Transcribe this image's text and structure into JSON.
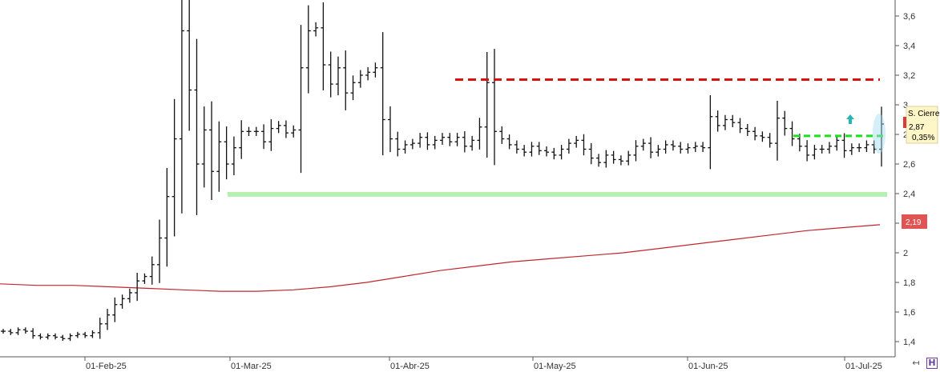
{
  "chart_data": {
    "type": "ohlc",
    "title": "",
    "xlabel": "",
    "ylabel": "",
    "ylim": [
      1.3,
      3.7
    ],
    "grid": false,
    "y_ticks": [
      "3,6",
      "3,4",
      "3,2",
      "3",
      "2,8",
      "2,6",
      "2,4",
      "2,2",
      "2",
      "1,8",
      "1,6",
      "1,4"
    ],
    "y_tick_values": [
      3.6,
      3.4,
      3.2,
      3.0,
      2.8,
      2.6,
      2.4,
      2.2,
      2.0,
      1.8,
      1.6,
      1.4
    ],
    "x_ticks": [
      "01-Feb-25",
      "01-Mar-25",
      "01-Abr-25",
      "01-May-25",
      "01-Jun-25",
      "01-Jul-25"
    ],
    "series": [
      {
        "values": [
          1.47,
          1.46,
          1.48,
          1.47,
          1.44,
          1.43,
          1.44,
          1.43,
          1.42,
          1.44,
          1.45,
          1.44,
          1.46,
          1.52,
          1.58,
          1.65,
          1.69,
          1.73,
          1.81,
          1.84,
          1.92,
          2.1,
          2.38,
          2.77,
          3.5,
          3.1,
          2.6,
          2.83,
          2.55,
          2.75,
          2.6,
          2.71,
          2.82,
          2.82,
          2.82,
          2.75,
          2.84,
          2.86,
          2.81,
          2.83,
          3.25,
          3.5,
          3.52,
          3.27,
          3.14,
          3.25,
          3.08,
          3.15,
          3.2,
          3.22,
          3.25,
          2.9,
          2.77,
          2.7,
          2.73,
          2.74,
          2.78,
          2.73,
          2.76,
          2.78,
          2.75,
          2.78,
          2.72,
          2.76,
          2.85,
          3.15,
          2.82,
          2.77,
          2.73,
          2.7,
          2.68,
          2.72,
          2.69,
          2.68,
          2.66,
          2.7,
          2.74,
          2.76,
          2.7,
          2.64,
          2.61,
          2.66,
          2.63,
          2.62,
          2.66,
          2.72,
          2.74,
          2.68,
          2.7,
          2.73,
          2.72,
          2.7,
          2.71,
          2.72,
          2.71,
          2.92,
          2.86,
          2.9,
          2.88,
          2.84,
          2.82,
          2.79,
          2.78,
          2.74,
          2.91,
          2.84,
          2.77,
          2.72,
          2.66,
          2.7,
          2.7,
          2.72,
          2.76,
          2.69,
          2.71,
          2.71,
          2.73,
          2.7,
          2.87
        ]
      },
      {
        "values": [
          1.79,
          1.78,
          1.78,
          1.77,
          1.76,
          1.75,
          1.74,
          1.74,
          1.75,
          1.77,
          1.8,
          1.84,
          1.88,
          1.91,
          1.94,
          1.96,
          1.98,
          2.0,
          2.03,
          2.06,
          2.09,
          2.12,
          2.15,
          2.17,
          2.19
        ]
      }
    ],
    "annotations": {
      "resistance": 3.17,
      "support": 2.395,
      "recent_level": 2.79,
      "close_label": "S. Cierre:",
      "close_value": "2,87",
      "close_change": "0,35%",
      "ma_value": "2,19"
    }
  },
  "colors": {
    "bars": "#111111",
    "ma": "#c0272d",
    "resistance": "#dd1111",
    "support": "#b5f0b0",
    "recent_level": "#1fdd1f",
    "arrow": "#2ab5b5",
    "badge_bg": "#fff6c8",
    "ma_badge_bg": "#e05454"
  },
  "toolbar": {
    "back_icon": "↤",
    "save_icon": "H"
  }
}
